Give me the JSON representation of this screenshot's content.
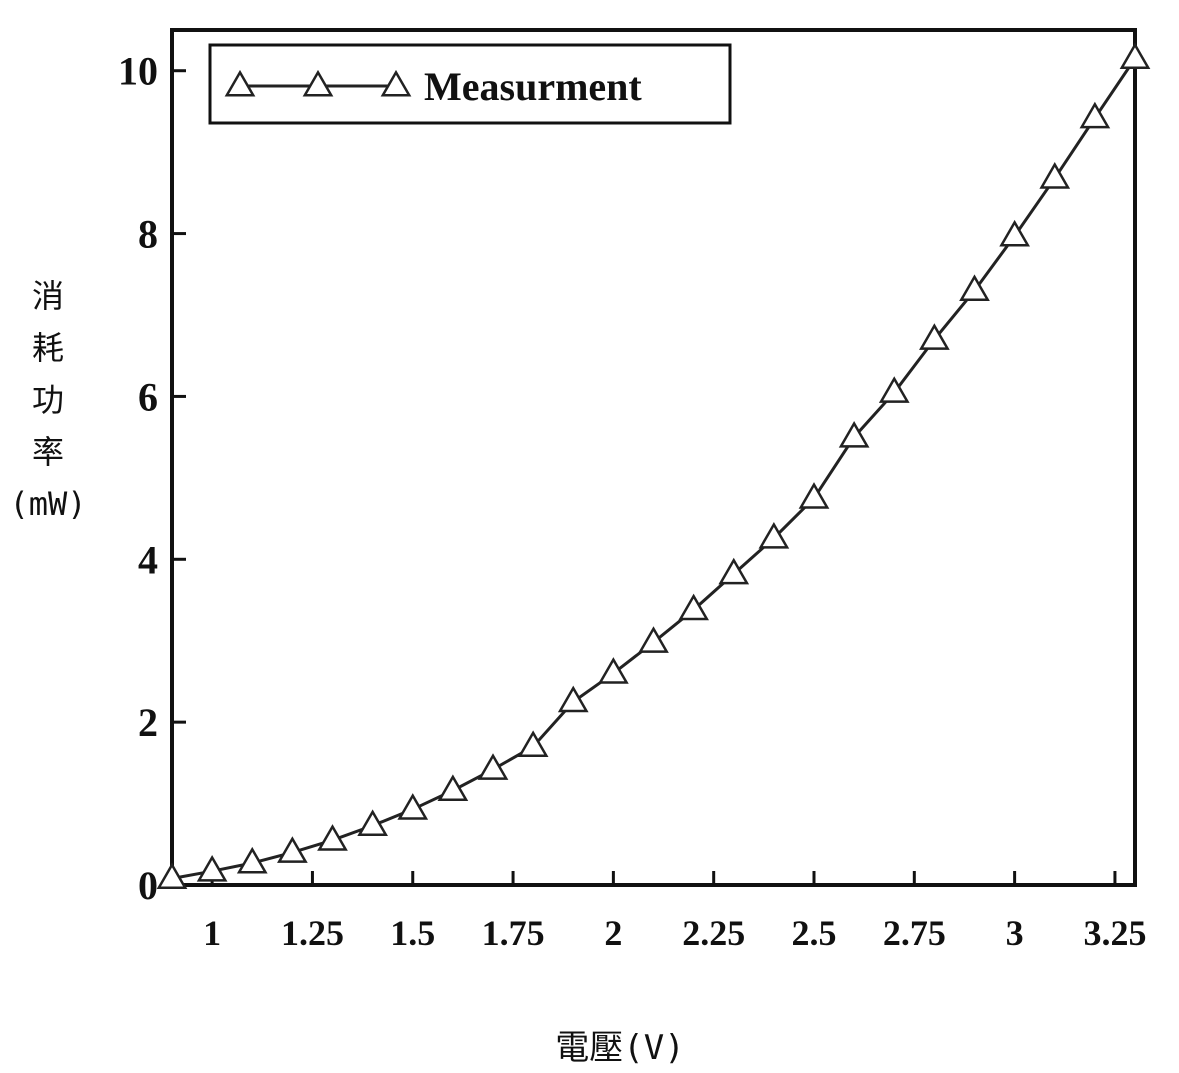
{
  "chart_data": {
    "type": "line",
    "xlabel": "電壓(V)",
    "ylabel_chars": [
      "消",
      "耗",
      "功",
      "率",
      "(mW)"
    ],
    "xlim": [
      0.9,
      3.3
    ],
    "ylim": [
      0,
      10.5
    ],
    "x_ticks": [
      1,
      1.25,
      1.5,
      1.75,
      2,
      2.25,
      2.5,
      2.75,
      3,
      3.25
    ],
    "x_tick_labels": [
      "1",
      "1.25",
      "1.5",
      "1.75",
      "2",
      "2.25",
      "2.5",
      "2.75",
      "3",
      "3.25"
    ],
    "y_ticks": [
      0,
      2,
      4,
      6,
      8,
      10
    ],
    "y_tick_labels": [
      "0",
      "2",
      "4",
      "6",
      "8",
      "10"
    ],
    "legend": {
      "position": "top-left",
      "marker": "triangle-open"
    },
    "series": [
      {
        "name": "Measurment",
        "marker": "triangle-open",
        "color": "#222222",
        "x": [
          0.9,
          1.0,
          1.1,
          1.2,
          1.3,
          1.4,
          1.5,
          1.6,
          1.7,
          1.8,
          1.9,
          2.0,
          2.1,
          2.2,
          2.3,
          2.4,
          2.5,
          2.6,
          2.7,
          2.8,
          2.9,
          3.0,
          3.1,
          3.2,
          3.3
        ],
        "y": [
          0.08,
          0.17,
          0.27,
          0.4,
          0.55,
          0.73,
          0.93,
          1.16,
          1.42,
          1.7,
          2.25,
          2.6,
          2.98,
          3.38,
          3.82,
          4.26,
          4.75,
          5.5,
          6.05,
          6.7,
          7.3,
          7.97,
          8.68,
          9.42,
          10.15
        ]
      }
    ]
  }
}
